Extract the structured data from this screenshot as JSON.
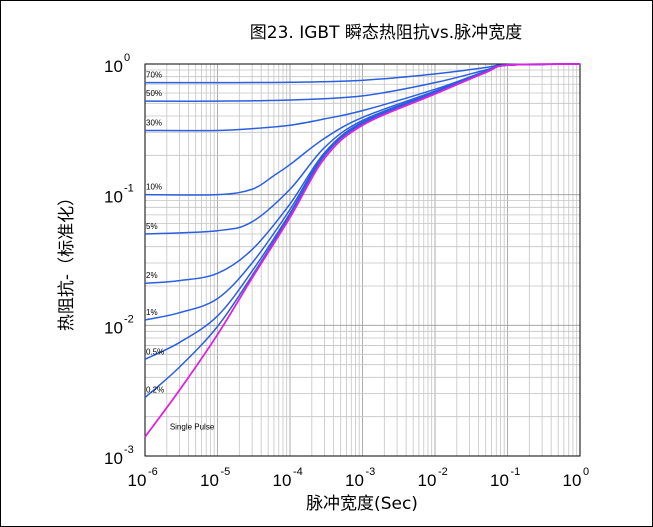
{
  "chart_data": {
    "type": "line",
    "title": "图23. IGBT 瞬态热阻抗vs.脉冲宽度",
    "xlabel": "脉冲宽度(Sec)",
    "ylabel": "热阻抗-（标准化）",
    "x_scale": "log",
    "y_scale": "log",
    "xlim": [
      1e-06,
      1
    ],
    "ylim": [
      0.001,
      1
    ],
    "grid": true,
    "x_ticks": [
      {
        "base": "10",
        "exp": "-6",
        "value": 1e-06
      },
      {
        "base": "10",
        "exp": "-5",
        "value": 1e-05
      },
      {
        "base": "10",
        "exp": "-4",
        "value": 0.0001
      },
      {
        "base": "10",
        "exp": "-3",
        "value": 0.001
      },
      {
        "base": "10",
        "exp": "-2",
        "value": 0.01
      },
      {
        "base": "10",
        "exp": "-1",
        "value": 0.1
      },
      {
        "base": "10",
        "exp": "0",
        "value": 1
      }
    ],
    "y_ticks": [
      {
        "base": "10",
        "exp": "-3",
        "value": 0.001
      },
      {
        "base": "10",
        "exp": "-2",
        "value": 0.01
      },
      {
        "base": "10",
        "exp": "-1",
        "value": 0.1
      },
      {
        "base": "10",
        "exp": "0",
        "value": 1
      }
    ],
    "series_color": "#2a5fe0",
    "single_pulse_color": "#e020e0",
    "series": [
      {
        "name": "70%",
        "x": [
          1e-06,
          1e-05,
          0.0001,
          0.001,
          0.01,
          0.05,
          0.1,
          1
        ],
        "y": [
          0.72,
          0.72,
          0.725,
          0.75,
          0.84,
          0.94,
          0.99,
          1.0
        ]
      },
      {
        "name": "50%",
        "x": [
          1e-06,
          1e-05,
          0.0001,
          0.001,
          0.01,
          0.05,
          0.1,
          1
        ],
        "y": [
          0.52,
          0.52,
          0.53,
          0.57,
          0.72,
          0.9,
          0.98,
          1.0
        ]
      },
      {
        "name": "30%",
        "x": [
          1e-06,
          1e-05,
          3e-05,
          0.0001,
          0.0003,
          0.001,
          0.01,
          0.05,
          0.1,
          1
        ],
        "y": [
          0.31,
          0.31,
          0.32,
          0.34,
          0.38,
          0.44,
          0.64,
          0.88,
          0.98,
          1.0
        ]
      },
      {
        "name": "10%",
        "x": [
          1e-06,
          1e-05,
          3e-05,
          6e-05,
          0.0001,
          0.0003,
          0.001,
          0.01,
          0.05,
          0.1,
          1
        ],
        "y": [
          0.1,
          0.1,
          0.11,
          0.14,
          0.17,
          0.27,
          0.39,
          0.62,
          0.88,
          0.98,
          1.0
        ]
      },
      {
        "name": "5%",
        "x": [
          1e-06,
          1e-05,
          3e-05,
          0.0001,
          0.0003,
          0.001,
          0.01,
          0.05,
          0.1,
          1
        ],
        "y": [
          0.05,
          0.053,
          0.062,
          0.11,
          0.23,
          0.37,
          0.61,
          0.87,
          0.98,
          1.0
        ]
      },
      {
        "name": "2%",
        "x": [
          1e-06,
          3e-06,
          1e-05,
          3e-05,
          0.0001,
          0.0003,
          0.001,
          0.01,
          0.05,
          0.1,
          1
        ],
        "y": [
          0.021,
          0.022,
          0.025,
          0.038,
          0.085,
          0.21,
          0.36,
          0.61,
          0.87,
          0.98,
          1.0
        ]
      },
      {
        "name": "1%",
        "x": [
          1e-06,
          3e-06,
          1e-05,
          3e-05,
          0.0001,
          0.0003,
          0.001,
          0.01,
          0.05,
          0.1,
          1
        ],
        "y": [
          0.011,
          0.0125,
          0.016,
          0.03,
          0.077,
          0.205,
          0.355,
          0.6,
          0.87,
          0.98,
          1.0
        ]
      },
      {
        "name": "0.5%",
        "x": [
          1e-06,
          3e-06,
          1e-05,
          3e-05,
          0.0001,
          0.0003,
          0.001,
          0.01,
          0.05,
          0.1,
          1
        ],
        "y": [
          0.0055,
          0.0074,
          0.0118,
          0.026,
          0.072,
          0.2,
          0.35,
          0.6,
          0.87,
          0.98,
          1.0
        ]
      },
      {
        "name": "0.2%",
        "x": [
          1e-06,
          3e-06,
          1e-05,
          3e-05,
          0.0001,
          0.0003,
          0.001,
          0.01,
          0.05,
          0.1,
          1
        ],
        "y": [
          0.0028,
          0.0048,
          0.0098,
          0.024,
          0.07,
          0.2,
          0.35,
          0.6,
          0.87,
          0.98,
          1.0
        ]
      },
      {
        "name": "Single Pulse",
        "x": [
          1e-06,
          3e-06,
          1e-05,
          3e-05,
          0.0001,
          0.0003,
          0.001,
          0.01,
          0.05,
          0.1,
          1
        ],
        "y": [
          0.0014,
          0.0032,
          0.0085,
          0.023,
          0.067,
          0.19,
          0.34,
          0.59,
          0.86,
          0.98,
          1.0
        ]
      }
    ]
  }
}
